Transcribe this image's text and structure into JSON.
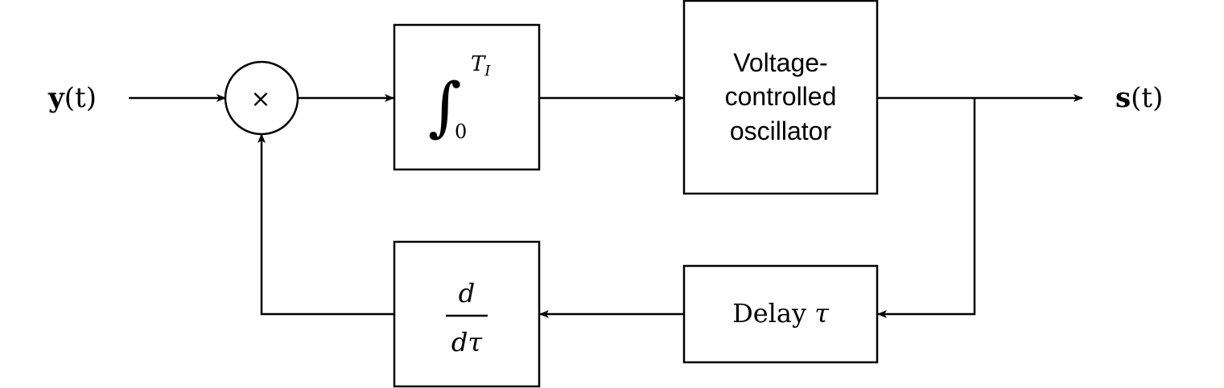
{
  "diagram": {
    "input_label": {
      "sym": "y",
      "arg": "(t)"
    },
    "output_label": {
      "sym": "s",
      "arg": "(t)"
    },
    "multiplier_symbol": "×",
    "integrator": {
      "sign": "∫",
      "upper": "T",
      "upper_sub": "I",
      "lower": "0"
    },
    "vco": {
      "lines": [
        "Voltage-",
        "controlled",
        "oscillator"
      ]
    },
    "delay": {
      "text": "Delay ",
      "sym": "τ"
    },
    "derivative": {
      "numerator": "d",
      "denominator": "dτ"
    }
  }
}
